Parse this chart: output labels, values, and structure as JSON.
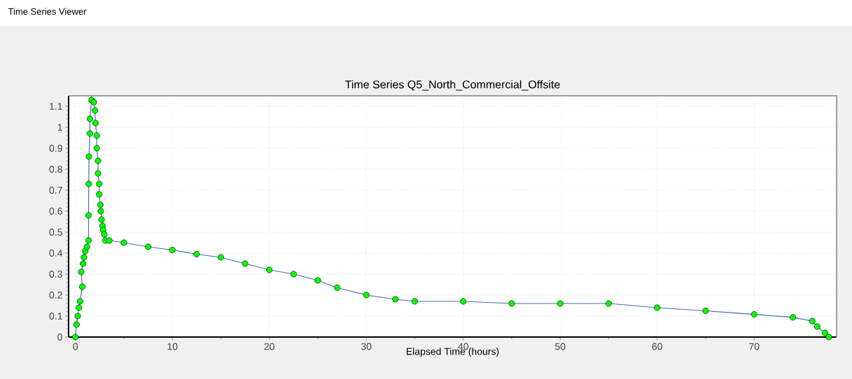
{
  "chart_data": {
    "type": "line",
    "title": "Time Series Q5_North_Commercial_Offsite",
    "xlabel": "Elapsed Time (hours)",
    "annotations": [
      "Time Series Viewer"
    ],
    "series": [
      {
        "color": "#00ff00",
        "x": [
          0,
          0.12,
          0.24,
          0.36,
          0.48,
          0.71,
          0.6,
          0.79,
          0.88,
          1.02,
          1.19,
          1.36,
          1.36,
          1.38,
          1.4,
          1.5,
          1.5,
          1.67,
          1.9,
          2.02,
          2.07,
          2.2,
          2.2,
          2.33,
          2.33,
          2.45,
          2.45,
          2.57,
          2.62,
          2.7,
          2.8,
          2.86,
          2.98,
          3.1,
          3.5,
          5,
          7.5,
          10,
          12.5,
          15,
          17.5,
          20,
          22.5,
          25,
          27,
          30,
          33,
          35,
          40,
          45,
          50,
          55,
          60,
          65,
          70,
          74,
          76,
          76.5,
          77.3,
          77.7
        ],
        "values": [
          0,
          0.06,
          0.1,
          0.14,
          0.17,
          0.24,
          0.31,
          0.35,
          0.38,
          0.41,
          0.43,
          0.46,
          0.58,
          0.73,
          0.86,
          0.97,
          1.04,
          1.13,
          1.12,
          1.08,
          1.02,
          0.96,
          0.9,
          0.84,
          0.78,
          0.73,
          0.68,
          0.63,
          0.6,
          0.56,
          0.53,
          0.51,
          0.49,
          0.46,
          0.46,
          0.45,
          0.43,
          0.415,
          0.395,
          0.38,
          0.35,
          0.32,
          0.3,
          0.27,
          0.235,
          0.2,
          0.18,
          0.17,
          0.17,
          0.16,
          0.16,
          0.16,
          0.14,
          0.125,
          0.108,
          0.094,
          0.076,
          0.05,
          0.02,
          0
        ]
      }
    ],
    "xlim": [
      -0.7,
      78.5
    ],
    "ylim": [
      0,
      1.15
    ],
    "xticks": [
      0,
      10,
      20,
      30,
      40,
      50,
      60,
      70
    ],
    "yticks": [
      0,
      0.1,
      0.2,
      0.3,
      0.4,
      0.5,
      0.6,
      0.7,
      0.8,
      0.9,
      1,
      1.1
    ],
    "grid": true,
    "marker": "circle",
    "line_style": "solid"
  }
}
